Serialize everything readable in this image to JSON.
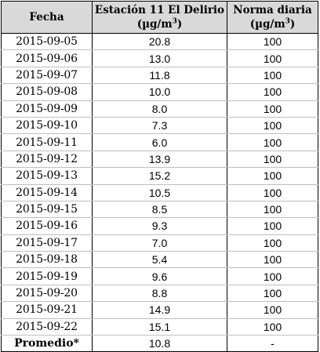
{
  "table": {
    "headers": [
      {
        "line1": "Fecha",
        "line2": "",
        "unit_sup": ""
      },
      {
        "line1": "Estación 11 El Delirio",
        "line2": "(µg/m",
        "unit_sup": "3",
        "line2_close": ")"
      },
      {
        "line1": "Norma diaria",
        "line2": "(µg/m",
        "unit_sup": "3",
        "line2_close": ")"
      }
    ],
    "rows": [
      [
        "2015-09-05",
        "20.8",
        "100"
      ],
      [
        "2015-09-06",
        "13.0",
        "100"
      ],
      [
        "2015-09-07",
        "11.8",
        "100"
      ],
      [
        "2015-09-08",
        "10.0",
        "100"
      ],
      [
        "2015-09-09",
        "8.0",
        "100"
      ],
      [
        "2015-09-10",
        "7.3",
        "100"
      ],
      [
        "2015-09-11",
        "6.0",
        "100"
      ],
      [
        "2015-09-12",
        "13.9",
        "100"
      ],
      [
        "2015-09-13",
        "15.2",
        "100"
      ],
      [
        "2015-09-14",
        "10.5",
        "100"
      ],
      [
        "2015-09-15",
        "8.5",
        "100"
      ],
      [
        "2015-09-16",
        "9.3",
        "100"
      ],
      [
        "2015-09-17",
        "7.0",
        "100"
      ],
      [
        "2015-09-18",
        "5.4",
        "100"
      ],
      [
        "2015-09-19",
        "9.6",
        "100"
      ],
      [
        "2015-09-20",
        "8.8",
        "100"
      ],
      [
        "2015-09-21",
        "14.9",
        "100"
      ],
      [
        "2015-09-22",
        "15.1",
        "100"
      ]
    ],
    "summary": {
      "label": "Promedio*",
      "value": "10.8",
      "norm": "-"
    }
  }
}
